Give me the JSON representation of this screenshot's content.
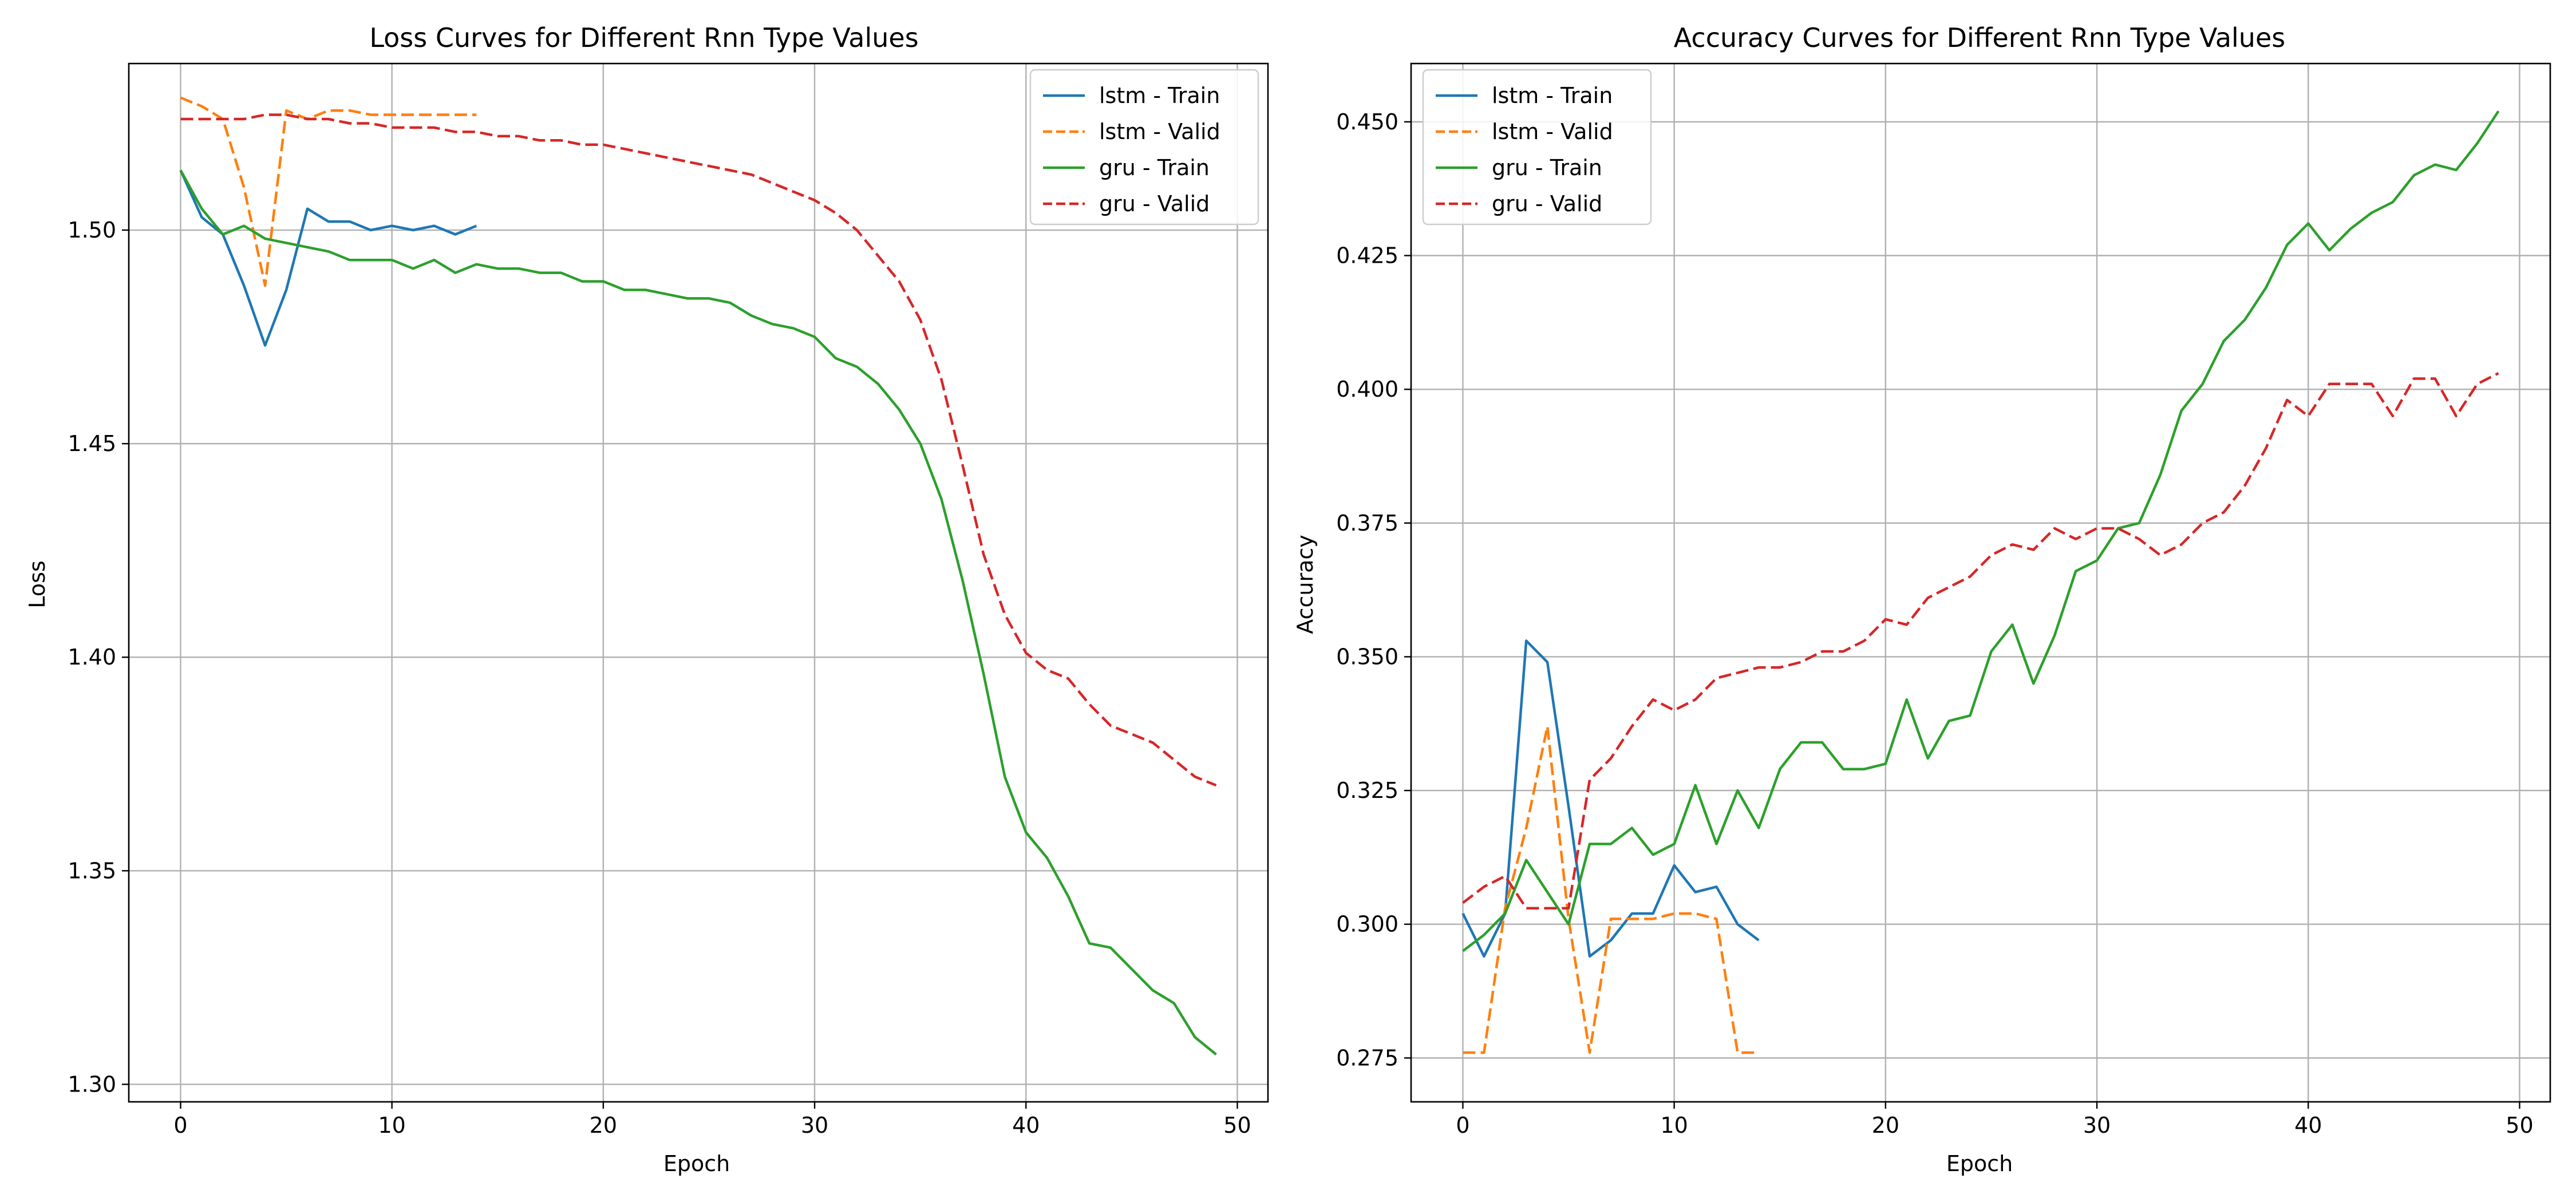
{
  "chart_data": [
    {
      "type": "line",
      "title": "Loss Curves for Different Rnn Type Values",
      "xlabel": "Epoch",
      "ylabel": "Loss",
      "xlim": [
        -2.45,
        51.45
      ],
      "ylim": [
        1.2959,
        1.539
      ],
      "xticks": [
        0,
        10,
        20,
        30,
        40,
        50
      ],
      "xtick_labels": [
        "0",
        "10",
        "20",
        "30",
        "40",
        "50"
      ],
      "yticks": [
        1.3,
        1.35,
        1.4,
        1.45,
        1.5
      ],
      "ytick_labels": [
        "1.30",
        "1.35",
        "1.40",
        "1.45",
        "1.50"
      ],
      "grid": true,
      "legend_position": "top-right",
      "series": [
        {
          "name": "lstm - Train",
          "color": "#1f77b4",
          "dash": "solid",
          "x": [
            0,
            1,
            2,
            3,
            4,
            5,
            6,
            7,
            8,
            9,
            10,
            11,
            12,
            13,
            14
          ],
          "y": [
            1.514,
            1.503,
            1.499,
            1.487,
            1.473,
            1.486,
            1.505,
            1.502,
            1.502,
            1.5,
            1.501,
            1.5,
            1.501,
            1.499,
            1.501
          ]
        },
        {
          "name": "lstm - Valid",
          "color": "#ff7f0e",
          "dash": "dashed",
          "x": [
            0,
            1,
            2,
            3,
            4,
            5,
            6,
            7,
            8,
            9,
            10,
            11,
            12,
            13,
            14
          ],
          "y": [
            1.531,
            1.529,
            1.526,
            1.51,
            1.487,
            1.528,
            1.526,
            1.528,
            1.528,
            1.527,
            1.527,
            1.527,
            1.527,
            1.527,
            1.527
          ]
        },
        {
          "name": "gru - Train",
          "color": "#2ca02c",
          "dash": "solid",
          "x": [
            0,
            1,
            2,
            3,
            4,
            5,
            6,
            7,
            8,
            9,
            10,
            11,
            12,
            13,
            14,
            15,
            16,
            17,
            18,
            19,
            20,
            21,
            22,
            23,
            24,
            25,
            26,
            27,
            28,
            29,
            30,
            31,
            32,
            33,
            34,
            35,
            36,
            37,
            38,
            39,
            40,
            41,
            42,
            43,
            44,
            45,
            46,
            47,
            48,
            49
          ],
          "y": [
            1.514,
            1.505,
            1.499,
            1.501,
            1.498,
            1.497,
            1.496,
            1.495,
            1.493,
            1.493,
            1.493,
            1.491,
            1.493,
            1.49,
            1.492,
            1.491,
            1.491,
            1.49,
            1.49,
            1.488,
            1.488,
            1.486,
            1.486,
            1.485,
            1.484,
            1.484,
            1.483,
            1.48,
            1.478,
            1.477,
            1.475,
            1.47,
            1.468,
            1.464,
            1.458,
            1.45,
            1.437,
            1.418,
            1.396,
            1.372,
            1.359,
            1.353,
            1.344,
            1.333,
            1.332,
            1.327,
            1.322,
            1.319,
            1.311,
            1.307
          ]
        },
        {
          "name": "gru - Valid",
          "color": "#d62728",
          "dash": "dashed",
          "x": [
            0,
            1,
            2,
            3,
            4,
            5,
            6,
            7,
            8,
            9,
            10,
            11,
            12,
            13,
            14,
            15,
            16,
            17,
            18,
            19,
            20,
            21,
            22,
            23,
            24,
            25,
            26,
            27,
            28,
            29,
            30,
            31,
            32,
            33,
            34,
            35,
            36,
            37,
            38,
            39,
            40,
            41,
            42,
            43,
            44,
            45,
            46,
            47,
            48,
            49
          ],
          "y": [
            1.526,
            1.526,
            1.526,
            1.526,
            1.527,
            1.527,
            1.526,
            1.526,
            1.525,
            1.525,
            1.524,
            1.524,
            1.524,
            1.523,
            1.523,
            1.522,
            1.522,
            1.521,
            1.521,
            1.52,
            1.52,
            1.519,
            1.518,
            1.517,
            1.516,
            1.515,
            1.514,
            1.513,
            1.511,
            1.509,
            1.507,
            1.504,
            1.5,
            1.494,
            1.488,
            1.479,
            1.465,
            1.445,
            1.424,
            1.41,
            1.401,
            1.397,
            1.395,
            1.389,
            1.384,
            1.382,
            1.38,
            1.376,
            1.372,
            1.37
          ]
        }
      ]
    },
    {
      "type": "line",
      "title": "Accuracy Curves for Different Rnn Type Values",
      "xlabel": "Epoch",
      "ylabel": "Accuracy",
      "xlim": [
        -2.45,
        51.45
      ],
      "ylim": [
        0.2668,
        0.4609
      ],
      "xticks": [
        0,
        10,
        20,
        30,
        40,
        50
      ],
      "xtick_labels": [
        "0",
        "10",
        "20",
        "30",
        "40",
        "50"
      ],
      "yticks": [
        0.275,
        0.3,
        0.325,
        0.35,
        0.375,
        0.4,
        0.425,
        0.45
      ],
      "ytick_labels": [
        "0.275",
        "0.300",
        "0.325",
        "0.350",
        "0.375",
        "0.400",
        "0.425",
        "0.450"
      ],
      "grid": true,
      "legend_position": "top-left",
      "series": [
        {
          "name": "lstm - Train",
          "color": "#1f77b4",
          "dash": "solid",
          "x": [
            0,
            1,
            2,
            3,
            4,
            5,
            6,
            7,
            8,
            9,
            10,
            11,
            12,
            13,
            14
          ],
          "y": [
            0.302,
            0.294,
            0.302,
            0.353,
            0.349,
            0.322,
            0.294,
            0.297,
            0.302,
            0.302,
            0.311,
            0.306,
            0.307,
            0.3,
            0.297
          ]
        },
        {
          "name": "lstm - Valid",
          "color": "#ff7f0e",
          "dash": "dashed",
          "x": [
            0,
            1,
            2,
            3,
            4,
            5,
            6,
            7,
            8,
            9,
            10,
            11,
            12,
            13,
            14
          ],
          "y": [
            0.276,
            0.276,
            0.303,
            0.318,
            0.337,
            0.301,
            0.276,
            0.301,
            0.301,
            0.301,
            0.302,
            0.302,
            0.301,
            0.276,
            0.276
          ]
        },
        {
          "name": "gru - Train",
          "color": "#2ca02c",
          "dash": "solid",
          "x": [
            0,
            1,
            2,
            3,
            4,
            5,
            6,
            7,
            8,
            9,
            10,
            11,
            12,
            13,
            14,
            15,
            16,
            17,
            18,
            19,
            20,
            21,
            22,
            23,
            24,
            25,
            26,
            27,
            28,
            29,
            30,
            31,
            32,
            33,
            34,
            35,
            36,
            37,
            38,
            39,
            40,
            41,
            42,
            43,
            44,
            45,
            46,
            47,
            48,
            49
          ],
          "y": [
            0.295,
            0.298,
            0.302,
            0.312,
            0.306,
            0.3,
            0.315,
            0.315,
            0.318,
            0.313,
            0.315,
            0.326,
            0.315,
            0.325,
            0.318,
            0.329,
            0.334,
            0.334,
            0.329,
            0.329,
            0.33,
            0.342,
            0.331,
            0.338,
            0.339,
            0.351,
            0.356,
            0.345,
            0.354,
            0.366,
            0.368,
            0.374,
            0.375,
            0.384,
            0.396,
            0.401,
            0.409,
            0.413,
            0.419,
            0.427,
            0.431,
            0.426,
            0.43,
            0.433,
            0.435,
            0.44,
            0.442,
            0.441,
            0.446,
            0.452
          ]
        },
        {
          "name": "gru - Valid",
          "color": "#d62728",
          "dash": "dashed",
          "x": [
            0,
            1,
            2,
            3,
            4,
            5,
            6,
            7,
            8,
            9,
            10,
            11,
            12,
            13,
            14,
            15,
            16,
            17,
            18,
            19,
            20,
            21,
            22,
            23,
            24,
            25,
            26,
            27,
            28,
            29,
            30,
            31,
            32,
            33,
            34,
            35,
            36,
            37,
            38,
            39,
            40,
            41,
            42,
            43,
            44,
            45,
            46,
            47,
            48,
            49
          ],
          "y": [
            0.304,
            0.307,
            0.309,
            0.303,
            0.303,
            0.303,
            0.327,
            0.331,
            0.337,
            0.342,
            0.34,
            0.342,
            0.346,
            0.347,
            0.348,
            0.348,
            0.349,
            0.351,
            0.351,
            0.353,
            0.357,
            0.356,
            0.361,
            0.363,
            0.365,
            0.369,
            0.371,
            0.37,
            0.374,
            0.372,
            0.374,
            0.374,
            0.372,
            0.369,
            0.371,
            0.375,
            0.377,
            0.382,
            0.389,
            0.398,
            0.395,
            0.401,
            0.401,
            0.401,
            0.395,
            0.402,
            0.402,
            0.395,
            0.401,
            0.403
          ]
        }
      ]
    }
  ]
}
